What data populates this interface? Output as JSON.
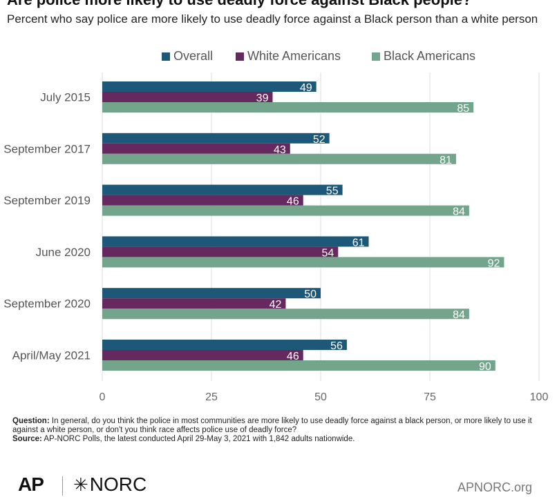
{
  "header": {
    "title": "Are police more likely to use deadly force against Black people?",
    "subtitle": "Percent who say police are more likely to use deadly force against a Black person than a white person"
  },
  "colors": {
    "overall": "#1d5878",
    "white_americans": "#66295f",
    "black_americans": "#72a58b",
    "grid": "#dddddd",
    "axis_text": "#666666"
  },
  "chart_data": {
    "type": "bar",
    "orientation": "horizontal",
    "categories": [
      "July 2015",
      "September 2017",
      "September 2019",
      "June 2020",
      "September 2020",
      "April/May 2021"
    ],
    "series": [
      {
        "name": "Overall",
        "values": [
          49,
          52,
          55,
          61,
          50,
          56
        ]
      },
      {
        "name": "White Americans",
        "values": [
          39,
          43,
          46,
          54,
          42,
          46
        ]
      },
      {
        "name": "Black Americans",
        "values": [
          85,
          81,
          84,
          92,
          84,
          90
        ]
      }
    ],
    "xlim": [
      0,
      100
    ],
    "xticks": [
      0,
      25,
      50,
      75,
      100
    ],
    "legend": "top",
    "grid": true,
    "data_labels": true
  },
  "footnote": {
    "question_label": "Question:",
    "question_text": "In general, do you think the police in most communities are more likely to use deadly force against a black person, or more likely to use it against a white person, or don't you think race affects police use of deadly force?",
    "source_label": "Source:",
    "source_text": "AP-NORC Polls, the latest conducted April 29-May 3, 2021 with 1,842 adults nationwide."
  },
  "branding": {
    "ap": "AP",
    "norc": "NORC",
    "norc_star": "✳",
    "site": "APNORC.org"
  }
}
